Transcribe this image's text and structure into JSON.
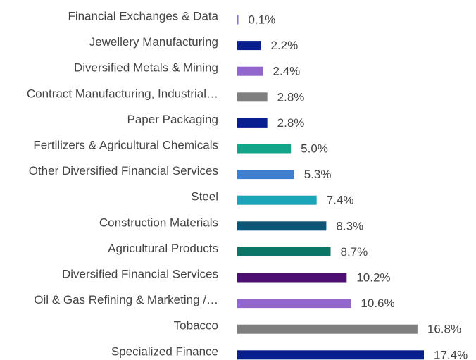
{
  "chart_data": {
    "type": "bar",
    "orientation": "horizontal",
    "categories": [
      "Financial Exchanges & Data",
      "Jewellery Manufacturing",
      "Diversified Metals & Mining",
      "Contract Manufacturing, Industrial…",
      "Paper Packaging",
      "Fertilizers & Agricultural Chemicals",
      "Other Diversified Financial Services",
      "Steel",
      "Construction Materials",
      "Agricultural Products",
      "Diversified Financial Services",
      "Oil & Gas Refining & Marketing /…",
      "Tobacco",
      "Specialized Finance"
    ],
    "values": [
      0.1,
      2.2,
      2.4,
      2.8,
      2.8,
      5.0,
      5.3,
      7.4,
      8.3,
      8.7,
      10.2,
      10.6,
      16.8,
      17.4
    ],
    "value_labels": [
      "0.1%",
      "2.2%",
      "2.4%",
      "2.8%",
      "2.8%",
      "5.0%",
      "5.3%",
      "7.4%",
      "8.3%",
      "8.7%",
      "10.2%",
      "10.6%",
      "16.8%",
      "17.4%"
    ],
    "colors": [
      "#8b6fd0",
      "#0a1f8f",
      "#9266cc",
      "#7f7f7f",
      "#0a1f8f",
      "#12a58a",
      "#3f7fcf",
      "#1aa5b8",
      "#0e5475",
      "#0b7566",
      "#4e0f73",
      "#9266cc",
      "#7f7f7f",
      "#0a1f8f"
    ]
  }
}
